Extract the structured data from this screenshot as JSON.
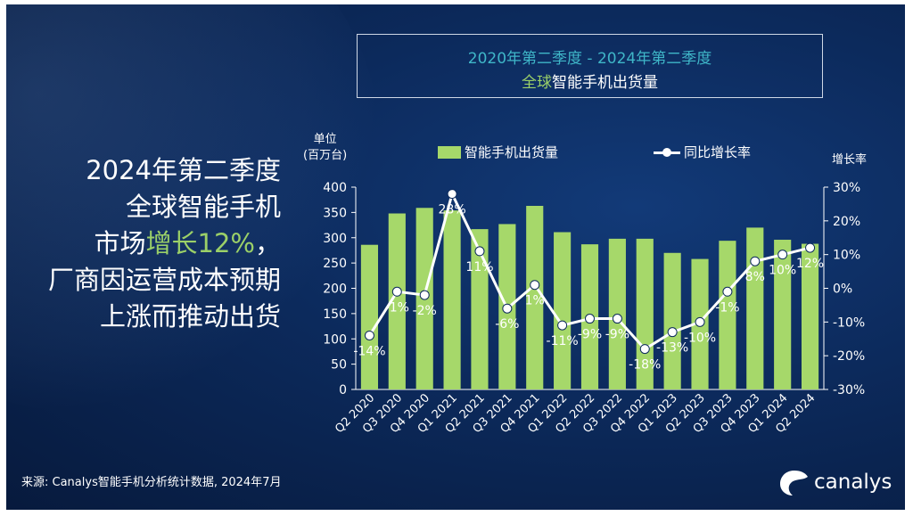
{
  "title": {
    "line1": "2020年第二季度 - 2024年第二季度",
    "line2_highlight": "全球",
    "line2_rest": "智能手机出货量"
  },
  "headline": {
    "line1": "2024年第二季度",
    "line2": "全球智能手机",
    "line3_prefix": "市场",
    "line3_highlight": "增长12%",
    "line3_suffix": "，",
    "line4": "厂商因运营成本预期",
    "line5": "上涨而推动出货"
  },
  "source": "来源: Canalys智能手机分析统计数据, 2024年7月",
  "logo": {
    "text": "canalys",
    "icon": "canalys-logo-icon"
  },
  "colors": {
    "bar": "#a6d86a",
    "line": "#ffffff",
    "title_accent": "#3fb6c8",
    "highlight": "#9bd068",
    "background": "#0c2a5c"
  },
  "chart_data": {
    "type": "bar",
    "categories": [
      "Q2 2020",
      "Q3 2020",
      "Q4 2020",
      "Q1 2021",
      "Q2 2021",
      "Q3 2021",
      "Q4 2021",
      "Q1 2022",
      "Q2 2022",
      "Q3 2022",
      "Q4 2022",
      "Q1 2023",
      "Q2 2023",
      "Q3 2023",
      "Q4 2023",
      "Q1 2024",
      "Q2 2024"
    ],
    "series": [
      {
        "name": "智能手机出货量",
        "type": "bar",
        "axis": "left",
        "values": [
          286,
          348,
          359,
          354,
          317,
          327,
          363,
          311,
          287,
          298,
          298,
          270,
          258,
          294,
          320,
          296,
          288
        ]
      },
      {
        "name": "同比增长率",
        "type": "line",
        "axis": "right",
        "values": [
          -14,
          -1,
          -2,
          28,
          11,
          -6,
          1,
          -11,
          -9,
          -9,
          -18,
          -13,
          -10,
          -1,
          8,
          10,
          12
        ],
        "labels": [
          "-14%",
          "-1%",
          "-2%",
          "28%",
          "11%",
          "-6%",
          "1%",
          "-11%",
          "-9%",
          "-9%",
          "-18%",
          "-13%",
          "-10%",
          "-1%",
          "8%",
          "10%",
          "12%"
        ]
      }
    ],
    "ylabel_left": [
      "单位",
      "(百万台)"
    ],
    "ylabel_right": "增长率",
    "ylim_left": [
      0,
      400
    ],
    "yticks_left": [
      "400",
      "350",
      "300",
      "250",
      "200",
      "150",
      "100",
      "50",
      "0"
    ],
    "ylim_right": [
      -30,
      30
    ],
    "yticks_right": [
      "30%",
      "20%",
      "10%",
      "0%",
      "-10%",
      "-20%",
      "-30%"
    ],
    "legend_position": "top",
    "grid": false
  }
}
